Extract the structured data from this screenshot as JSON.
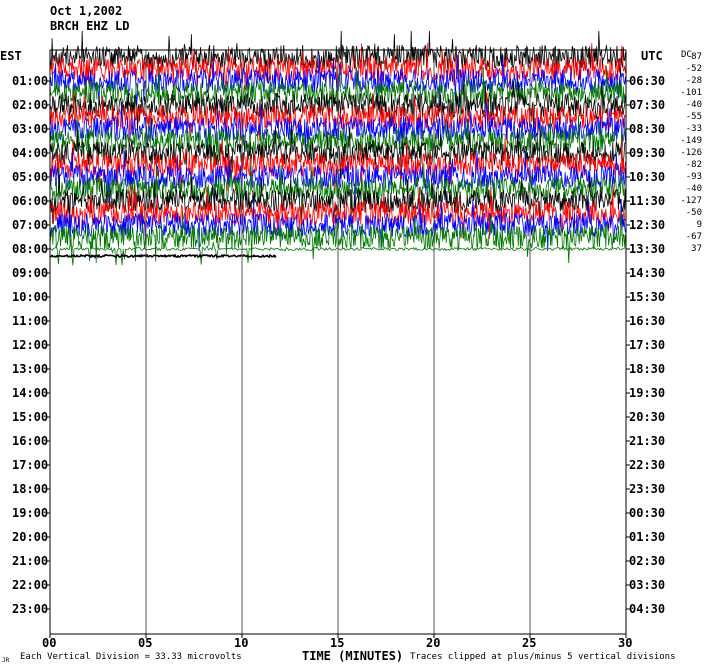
{
  "header": {
    "date": "Oct 1,2002",
    "station": "BRCH EHZ LD",
    "left_zone": "EST",
    "right_zone": "UTC",
    "dc_label": "DC"
  },
  "footer": {
    "division_label": "Each Vertical Division =",
    "division_value": "33.33 microvolts",
    "xlabel": "TIME (MINUTES)",
    "clip_note": "Traces clipped at plus/minus 5 vertical divisions",
    "corner_mark": "JR"
  },
  "chart_data": {
    "type": "line",
    "title": "Oct 1,2002 BRCH EHZ LD",
    "xlabel": "TIME (MINUTES)",
    "ylabel_left": "EST",
    "ylabel_right": "UTC",
    "x_ticks": [
      "00",
      "05",
      "10",
      "15",
      "20",
      "25",
      "30"
    ],
    "xlim": [
      0,
      30
    ],
    "rows_left": [
      "01:00",
      "02:00",
      "03:00",
      "04:00",
      "05:00",
      "06:00",
      "07:00",
      "08:00",
      "09:00",
      "10:00",
      "11:00",
      "12:00",
      "13:00",
      "14:00",
      "15:00",
      "16:00",
      "17:00",
      "18:00",
      "19:00",
      "20:00",
      "21:00",
      "22:00",
      "23:00"
    ],
    "rows_right": [
      "06:30",
      "07:30",
      "08:30",
      "09:30",
      "10:30",
      "11:30",
      "12:30",
      "13:30",
      "14:30",
      "15:30",
      "16:30",
      "17:30",
      "18:30",
      "19:30",
      "20:30",
      "21:30",
      "22:30",
      "23:30",
      "00:30",
      "01:30",
      "02:30",
      "03:30",
      "04:30"
    ],
    "dc_offsets": [
      87,
      -52,
      -28,
      -101,
      -40,
      -55,
      -33,
      -149,
      -126,
      -82,
      -93,
      -40,
      -127,
      -50,
      9,
      -67,
      37
    ],
    "trace_colors": [
      "#000000",
      "#ff0000",
      "#0000ff",
      "#007700"
    ],
    "filled_traces": 16,
    "partial_trace_end_minute": 11.8,
    "clip_divisions": 5,
    "grid_vertical_every_minutes": 5
  }
}
